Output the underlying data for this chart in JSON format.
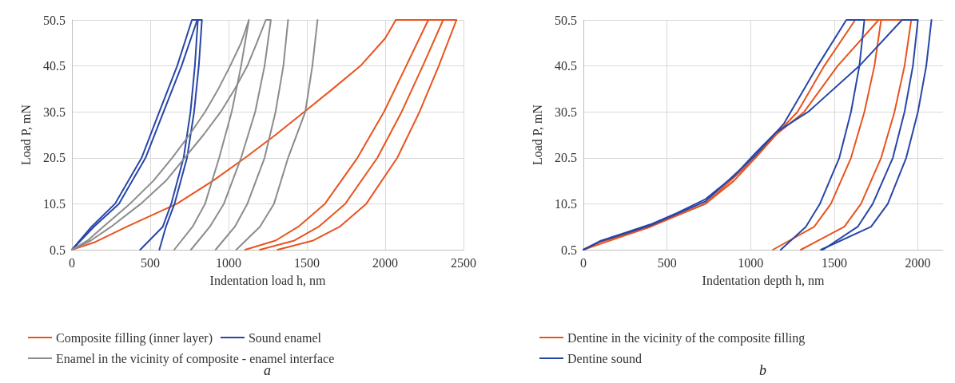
{
  "chart_data": [
    {
      "type": "line",
      "xlabel": "Indentation load h, nm",
      "ylabel": "Load P, mN",
      "xlim": [
        0,
        2500
      ],
      "xticks": [
        0,
        500,
        1000,
        1500,
        2000,
        2500
      ],
      "ylim": [
        0.5,
        50.5
      ],
      "yticks": [
        0.5,
        10.5,
        20.5,
        30.5,
        40.5,
        50.5
      ],
      "grid": true,
      "legend": "bottom",
      "marker": "none",
      "line_style": "solid",
      "annotations": [
        "a"
      ],
      "series": [
        {
          "name": "Composite filling (inner layer)",
          "color": "#e8541e",
          "x": [
            0,
            150,
            350,
            670,
            900,
            1106,
            1300,
            1483,
            1665,
            1842,
            2000,
            2068,
            2275,
            2134,
            1992,
            1823,
            1615,
            1445,
            1300,
            1106
          ],
          "values": [
            0.5,
            2.2,
            5.5,
            10.5,
            15.5,
            20.5,
            25.5,
            30.5,
            35.5,
            40.5,
            46.5,
            50.5,
            50.5,
            40.5,
            30.5,
            20.5,
            10.5,
            5.5,
            2.5,
            0.5
          ]
        },
        {
          "color": "#e8541e",
          "x": [
            2068,
            2370,
            2240,
            2105,
            1950,
            1745,
            1575,
            1420,
            1200
          ],
          "values": [
            50.5,
            50.5,
            40.5,
            30.5,
            20.5,
            10.5,
            5.5,
            2.5,
            0.5
          ]
        },
        {
          "color": "#e8541e",
          "x": [
            2068,
            2455,
            2342,
            2219,
            2077,
            1879,
            1709,
            1540,
            1313
          ],
          "values": [
            50.5,
            50.5,
            40.5,
            30.5,
            20.5,
            10.5,
            5.5,
            2.5,
            0.5
          ]
        },
        {
          "name": "Sound enamel",
          "color": "#2846a8",
          "x": [
            0,
            125,
            275,
            445,
            558,
            672,
            766,
            804,
            785,
            757,
            713,
            634,
            580,
            436
          ],
          "values": [
            0.5,
            5.5,
            10.5,
            20.5,
            30.5,
            40.5,
            50.5,
            50.5,
            40.5,
            30.5,
            20.5,
            10.5,
            5.5,
            0.5
          ]
        },
        {
          "color": "#2846a8",
          "x": [
            0,
            140,
            300,
            470,
            585,
            700,
            800,
            830,
            810,
            780,
            735,
            655,
            600,
            558
          ],
          "values": [
            0.5,
            5.5,
            10.5,
            20.5,
            30.5,
            40.5,
            50.5,
            50.5,
            40.5,
            30.5,
            20.5,
            10.5,
            5.5,
            0.5
          ]
        },
        {
          "name": "Enamel in the vicinity of composite - enamel interface",
          "color": "#8c8c8c",
          "x": [
            0,
            100,
            200,
            370,
            520,
            640,
            750,
            850,
            935,
            1010,
            1080,
            1130,
            1080,
            1020,
            940,
            850,
            770,
            653
          ],
          "values": [
            0.5,
            2.5,
            5.5,
            10.5,
            15.5,
            20.5,
            25.5,
            30.5,
            35.5,
            40.5,
            45.5,
            50.5,
            40.5,
            30.5,
            20.5,
            10.5,
            5.5,
            0.5
          ]
        },
        {
          "color": "#8c8c8c",
          "x": [
            0,
            120,
            250,
            440,
            600,
            720,
            840,
            950,
            1040,
            1120,
            1180,
            1238,
            1270,
            1230,
            1170,
            1080,
            970,
            880,
            760
          ],
          "values": [
            0.5,
            2.5,
            5.5,
            10.5,
            15.5,
            20.5,
            25.5,
            30.5,
            35.5,
            40.5,
            45.5,
            50.5,
            50.5,
            40.5,
            30.5,
            20.5,
            10.5,
            5.5,
            0.5
          ]
        },
        {
          "color": "#8c8c8c",
          "x": [
            1380,
            1350,
            1300,
            1230,
            1120,
            1040,
            917
          ],
          "values": [
            50.5,
            40.5,
            30.5,
            20.5,
            10.5,
            5.5,
            0.5
          ]
        },
        {
          "color": "#8c8c8c",
          "x": [
            1568,
            1535,
            1490,
            1380,
            1290,
            1200,
            1049
          ],
          "values": [
            50.5,
            40.5,
            30.5,
            20.5,
            10.5,
            5.5,
            0.5
          ]
        }
      ]
    },
    {
      "type": "line",
      "xlabel": "Indentation depth h, nm",
      "ylabel": "Load P, mN",
      "xlim": [
        0,
        2150
      ],
      "xticks": [
        0,
        500,
        1000,
        1500,
        2000
      ],
      "ylim": [
        0.5,
        50.5
      ],
      "yticks": [
        0.5,
        10.5,
        20.5,
        30.5,
        40.5,
        50.5
      ],
      "grid": true,
      "legend": "bottom",
      "marker": "none",
      "line_style": "solid",
      "annotations": [
        "b"
      ],
      "series": [
        {
          "name": "Dentine in the vicinity of the composite filling",
          "color": "#e8541e",
          "x": [
            0,
            100,
            250,
            400,
            560,
            730,
            900,
            1028,
            1150,
            1280,
            1440,
            1625,
            1780,
            1740,
            1680,
            1600,
            1480,
            1380,
            1133
          ],
          "values": [
            0.5,
            2.2,
            3.8,
            5.5,
            8,
            10.5,
            15.5,
            20.5,
            25.5,
            30.5,
            40.5,
            50.5,
            50.5,
            40.5,
            30.5,
            20.5,
            10.5,
            5.5,
            0.5
          ]
        },
        {
          "color": "#e8541e",
          "x": [
            0,
            400,
            730,
            1028,
            1150,
            1320,
            1520,
            1765,
            1960,
            1920,
            1860,
            1780,
            1660,
            1560,
            1300
          ],
          "values": [
            0.5,
            5.5,
            10.5,
            20.5,
            25.5,
            30.5,
            40.5,
            50.5,
            50.5,
            40.5,
            30.5,
            20.5,
            10.5,
            5.5,
            0.5
          ]
        },
        {
          "name": "Dentine sound",
          "color": "#2846a8",
          "x": [
            0,
            100,
            250,
            400,
            560,
            730,
            900,
            1028,
            1150,
            1344,
            1650,
            1905,
            2000,
            1970,
            1920,
            1850,
            1730,
            1640,
            1432
          ],
          "values": [
            0.5,
            2.4,
            4.2,
            6,
            8.5,
            11.5,
            16.5,
            21.5,
            26,
            30.5,
            40.5,
            50.5,
            50.5,
            40.5,
            30.5,
            20.5,
            10.5,
            5.5,
            0.5
          ]
        },
        {
          "color": "#2846a8",
          "x": [
            0,
            100,
            400,
            730,
            1028,
            1200,
            1400,
            1572,
            1680,
            1650,
            1600,
            1530,
            1414,
            1330,
            1180
          ],
          "values": [
            0.5,
            2.3,
            5.8,
            11,
            21,
            28,
            40.5,
            50.5,
            50.5,
            40.5,
            30.5,
            20.5,
            10.5,
            5.5,
            0.5
          ]
        },
        {
          "color": "#2846a8",
          "x": [
            2081,
            2050,
            2000,
            1930,
            1820,
            1720,
            1420
          ],
          "values": [
            50.5,
            40.5,
            30.5,
            20.5,
            10.5,
            5.5,
            0.5
          ]
        }
      ]
    }
  ]
}
